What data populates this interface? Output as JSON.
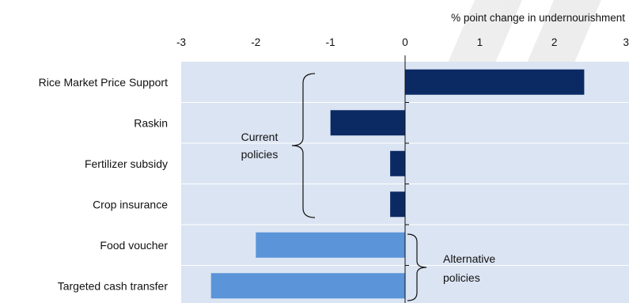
{
  "chart_data": {
    "type": "bar",
    "orientation": "horizontal",
    "xlabel": "% point change in undernourishment",
    "xlim": [
      -3,
      3
    ],
    "xticks": [
      "-3",
      "-2",
      "-1",
      "0",
      "1",
      "2",
      "3"
    ],
    "categories": [
      "Rice Market Price Support",
      "Raskin",
      "Fertilizer subsidy",
      "Crop insurance",
      "Food voucher",
      "Targeted cash transfer"
    ],
    "values": [
      2.4,
      -1.0,
      -0.2,
      -0.2,
      -2.0,
      -2.6
    ],
    "groups": [
      {
        "label_lines": [
          "Current",
          "policies"
        ],
        "categories": [
          0,
          1,
          2,
          3
        ],
        "color": "#0b2a63"
      },
      {
        "label_lines": [
          "Alternative",
          "policies"
        ],
        "categories": [
          4,
          5
        ],
        "color": "#5b94d8"
      }
    ],
    "plot_background": "#dbe4f2",
    "grid": "horizontal"
  }
}
